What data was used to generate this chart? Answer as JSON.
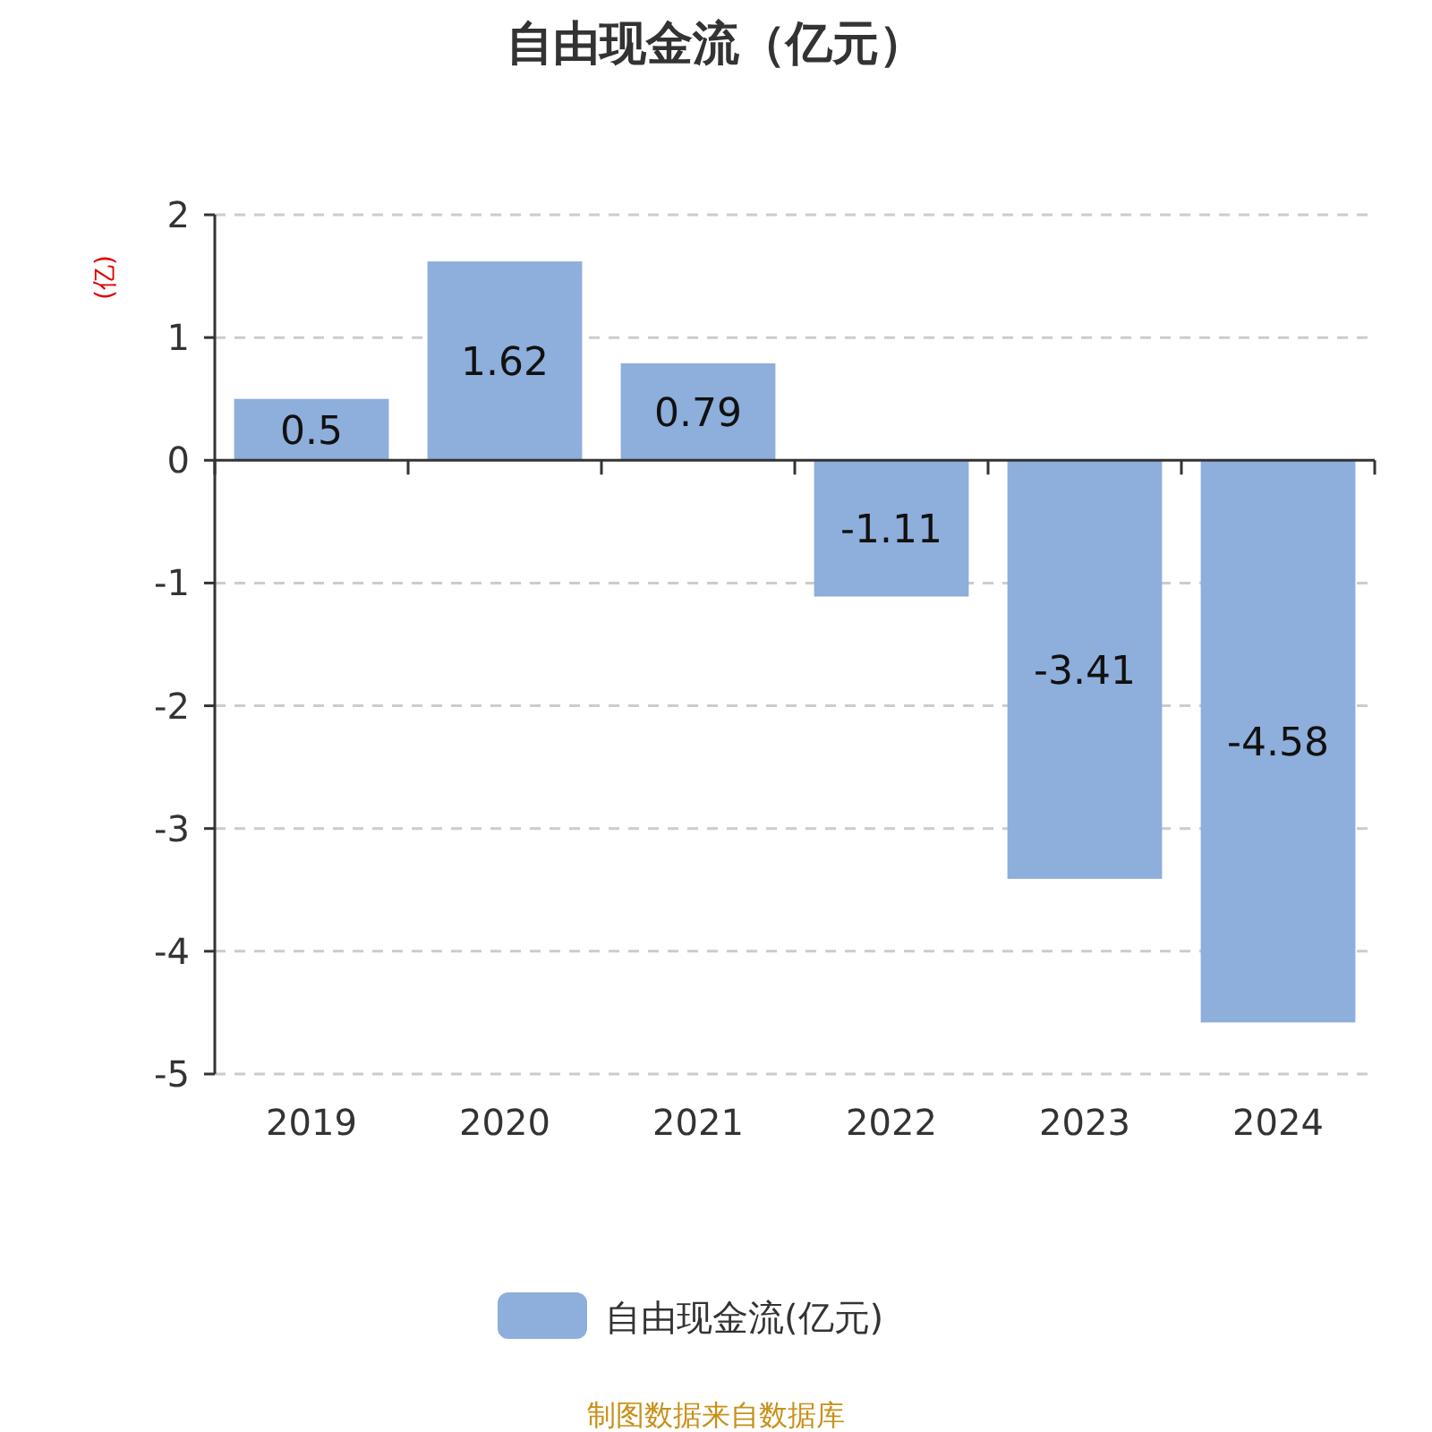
{
  "chart_data": {
    "type": "bar",
    "title": "自由现金流（亿元）",
    "ylabel": "(亿)",
    "categories": [
      "2019",
      "2020",
      "2021",
      "2022",
      "2023",
      "2024"
    ],
    "series": [
      {
        "name": "自由现金流(亿元)",
        "color": "#8eaedb",
        "values": [
          0.5,
          1.62,
          0.79,
          -1.11,
          -3.41,
          -4.58
        ]
      }
    ],
    "ylim": [
      -5,
      2
    ],
    "yticks": [
      -5,
      -4,
      -3,
      -2,
      -1,
      0,
      1,
      2
    ],
    "grid": "y",
    "legend": "bottom",
    "data_labels": true,
    "annotations": [
      "制图数据来自数据库"
    ]
  }
}
